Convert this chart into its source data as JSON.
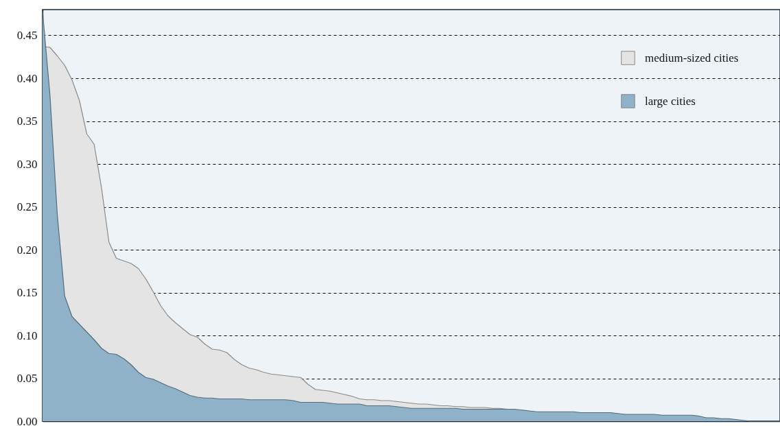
{
  "chart_data": {
    "type": "area",
    "categories": [
      null,
      null,
      null,
      null,
      null,
      null,
      null,
      null,
      null,
      null,
      null,
      null,
      null,
      null,
      null,
      null,
      null,
      null,
      null,
      null,
      null,
      null,
      null,
      null,
      null,
      null,
      null,
      null,
      null,
      null,
      null,
      null,
      null,
      null,
      null,
      null,
      null,
      null,
      null,
      null,
      null,
      null,
      null,
      null,
      null,
      null,
      null,
      null,
      null,
      null,
      null,
      null,
      null,
      null,
      null,
      null,
      null,
      null,
      null,
      null,
      null,
      null,
      null,
      null,
      null,
      null,
      null,
      null,
      null,
      null,
      null,
      null,
      null,
      null,
      null,
      null,
      null,
      null,
      null,
      null,
      null,
      null,
      null,
      null,
      null,
      null,
      null,
      null,
      null,
      null,
      null,
      null,
      null,
      null,
      null,
      null,
      null,
      null,
      null,
      null,
      null
    ],
    "series": [
      {
        "name": "medium-sized cities",
        "color": "#e4e4e4",
        "values": [
          0.437,
          0.436,
          0.426,
          0.415,
          0.398,
          0.374,
          0.335,
          0.323,
          0.272,
          0.209,
          0.19,
          0.187,
          0.184,
          0.178,
          0.166,
          0.151,
          0.135,
          0.123,
          0.115,
          0.108,
          0.101,
          0.098,
          0.09,
          0.084,
          0.083,
          0.08,
          0.072,
          0.066,
          0.062,
          0.06,
          0.057,
          0.055,
          0.054,
          0.053,
          0.052,
          0.051,
          0.043,
          0.037,
          0.036,
          0.035,
          0.033,
          0.031,
          0.029,
          0.026,
          0.025,
          0.025,
          0.024,
          0.024,
          0.023,
          0.022,
          0.021,
          0.02,
          0.02,
          0.019,
          0.018,
          0.018,
          0.017,
          0.017,
          0.016,
          0.016,
          0.016,
          0.015,
          0.015,
          0.014,
          null,
          null,
          null,
          null,
          null,
          null,
          null,
          null,
          null,
          null,
          null,
          null,
          null,
          null,
          null,
          null,
          null,
          null,
          null,
          null,
          null,
          null,
          null,
          null,
          null,
          null,
          null,
          null,
          null,
          null,
          null,
          null,
          null,
          null,
          null,
          null,
          null
        ]
      },
      {
        "name": "large cities",
        "color": "#8fb2c8",
        "values": [
          0.478,
          0.381,
          0.241,
          0.146,
          0.122,
          0.113,
          0.104,
          0.095,
          0.085,
          0.079,
          0.078,
          0.073,
          0.066,
          0.057,
          0.051,
          0.049,
          0.045,
          0.041,
          0.038,
          0.034,
          0.03,
          0.028,
          0.027,
          0.027,
          0.026,
          0.026,
          0.026,
          0.026,
          0.025,
          0.025,
          0.025,
          0.025,
          0.025,
          0.025,
          0.024,
          0.022,
          0.022,
          0.022,
          0.022,
          0.021,
          0.02,
          0.02,
          0.02,
          0.02,
          0.018,
          0.018,
          0.018,
          0.018,
          0.017,
          0.016,
          0.015,
          0.015,
          0.015,
          0.015,
          0.015,
          0.015,
          0.015,
          0.014,
          0.014,
          0.014,
          0.014,
          0.014,
          0.014,
          0.014,
          0.014,
          0.013,
          0.012,
          0.011,
          0.011,
          0.011,
          0.011,
          0.011,
          0.011,
          0.01,
          0.01,
          0.01,
          0.01,
          0.01,
          0.009,
          0.008,
          0.008,
          0.008,
          0.008,
          0.008,
          0.007,
          0.007,
          0.007,
          0.007,
          0.007,
          0.006,
          0.004,
          0.004,
          0.003,
          0.003,
          0.002,
          0.001,
          0,
          0,
          0,
          0,
          0
        ]
      }
    ],
    "ylim": [
      0,
      0.48
    ],
    "yticks": [
      {
        "value": 0,
        "label": "0.00"
      },
      0.05,
      {
        "value": 0.1,
        "label": "0.10"
      },
      0.15,
      {
        "value": 0.2,
        "label": "0.20"
      },
      0.25,
      {
        "value": 0.3,
        "label": "0.30"
      },
      0.35,
      {
        "value": 0.4,
        "label": "0.40"
      },
      0.45
    ],
    "grid": "y",
    "legend": "top right",
    "tick_labels": "y",
    "marker": "none"
  }
}
